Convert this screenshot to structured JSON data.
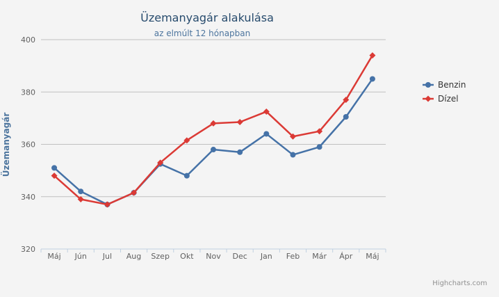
{
  "chart_data": {
    "type": "line",
    "title": "Üzemanyagár alakulása",
    "subtitle": "az elmúlt 12 hónapban",
    "ylabel": "Üzemanyagár",
    "xlabel": "",
    "categories": [
      "Máj",
      "Jún",
      "Jul",
      "Aug",
      "Szep",
      "Okt",
      "Nov",
      "Dec",
      "Jan",
      "Feb",
      "Már",
      "Ápr",
      "Máj"
    ],
    "ylim": [
      320,
      400
    ],
    "yticks": [
      320,
      340,
      360,
      380,
      400
    ],
    "grid": true,
    "legend_position": "right",
    "series": [
      {
        "name": "Benzin",
        "color": "#4572a7",
        "marker": "circle",
        "values": [
          351,
          342,
          337,
          341.5,
          352.5,
          348,
          358,
          357,
          364,
          356,
          359,
          370.5,
          385
        ]
      },
      {
        "name": "Dízel",
        "color": "#db3a35",
        "marker": "diamond",
        "values": [
          348,
          339,
          337,
          341.5,
          353,
          361.5,
          368,
          368.5,
          372.5,
          363,
          365,
          377,
          394
        ]
      }
    ]
  },
  "credits": "Highcharts.com"
}
